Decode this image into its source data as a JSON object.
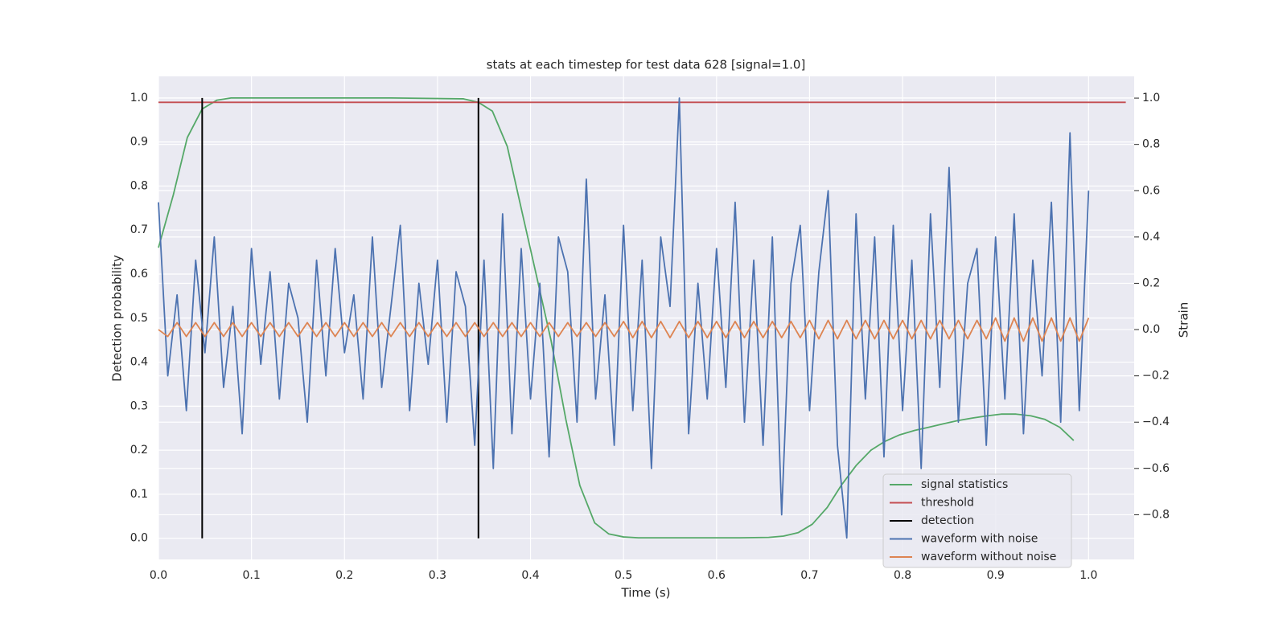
{
  "chart_data": {
    "type": "line",
    "title": "stats at each timestep for test data 628 [signal=1.0]",
    "xlabel": "Time (s)",
    "ylabel": "Detection probability",
    "y2label": "Strain",
    "xlim": [
      0,
      1.049
    ],
    "ylim": [
      -0.048,
      1.049
    ],
    "y2lim": [
      -0.993,
      1.094
    ],
    "xticks": [
      {
        "value": 0,
        "label": "0.0"
      },
      0.1,
      0.2,
      0.3,
      0.4,
      0.5,
      0.6,
      0.7,
      0.8,
      0.9,
      {
        "value": 1,
        "label": "1.0"
      }
    ],
    "yticks": [
      {
        "value": 0,
        "label": "0.0"
      },
      0.1,
      0.2,
      0.3,
      0.4,
      0.5,
      0.6,
      0.7,
      0.8,
      0.9,
      {
        "value": 1,
        "label": "1.0"
      }
    ],
    "y2ticks": [
      {
        "value": -0.8,
        "label": "−0.8"
      },
      {
        "value": -0.6,
        "label": "−0.6"
      },
      {
        "value": -0.4,
        "label": "−0.4"
      },
      {
        "value": -0.2,
        "label": "−0.2"
      },
      {
        "value": 0,
        "label": "0.0"
      },
      0.2,
      0.4,
      0.6,
      0.8,
      {
        "value": 1,
        "label": "1.0"
      }
    ],
    "grid": true,
    "legend": "lower right",
    "x": [
      0,
      0.01,
      0.02,
      0.03,
      0.04,
      0.05,
      0.06,
      0.07,
      0.08,
      0.09,
      0.1,
      0.11,
      0.12,
      0.13,
      0.14,
      0.15,
      0.16,
      0.17,
      0.18,
      0.19,
      0.2,
      0.21,
      0.22,
      0.23,
      0.24,
      0.25,
      0.26,
      0.27,
      0.28,
      0.29,
      0.3,
      0.31,
      0.32,
      0.33,
      0.34,
      0.35,
      0.36,
      0.37,
      0.38,
      0.39,
      0.4,
      0.41,
      0.42,
      0.43,
      0.44,
      0.45,
      0.46,
      0.47,
      0.48,
      0.49,
      0.5,
      0.51,
      0.52,
      0.53,
      0.54,
      0.55,
      0.56,
      0.57,
      0.58,
      0.59,
      0.6,
      0.61,
      0.62,
      0.63,
      0.64,
      0.65,
      0.66,
      0.67,
      0.68,
      0.69,
      0.7,
      0.71,
      0.72,
      0.73,
      0.74,
      0.75,
      0.76,
      0.77,
      0.78,
      0.79,
      0.8,
      0.81,
      0.82,
      0.83,
      0.84,
      0.85,
      0.86,
      0.87,
      0.88,
      0.89,
      0.9,
      0.91,
      0.92,
      0.93,
      0.94,
      0.95,
      0.96,
      0.97,
      0.98,
      0.99,
      1.0
    ],
    "series": [
      {
        "name": "signal statistics",
        "color": "#55a868",
        "x": [
          0,
          0.016,
          0.031,
          0.047,
          0.063,
          0.078,
          0.125,
          0.25,
          0.328,
          0.344,
          0.359,
          0.375,
          0.391,
          0.406,
          0.422,
          0.438,
          0.453,
          0.469,
          0.484,
          0.5,
          0.516,
          0.563,
          0.625,
          0.656,
          0.672,
          0.688,
          0.703,
          0.719,
          0.734,
          0.75,
          0.766,
          0.781,
          0.797,
          0.813,
          0.828,
          0.844,
          0.859,
          0.875,
          0.891,
          0.906,
          0.922,
          0.938,
          0.953,
          0.969,
          0.984
        ],
        "values": [
          0.66,
          0.78,
          0.91,
          0.975,
          0.995,
          1.0,
          1.0,
          1.0,
          0.998,
          0.99,
          0.97,
          0.89,
          0.74,
          0.6,
          0.45,
          0.27,
          0.12,
          0.035,
          0.01,
          0.003,
          0.001,
          0.001,
          0.001,
          0.002,
          0.005,
          0.013,
          0.032,
          0.07,
          0.12,
          0.165,
          0.2,
          0.22,
          0.235,
          0.245,
          0.252,
          0.26,
          0.267,
          0.273,
          0.278,
          0.282,
          0.282,
          0.278,
          0.27,
          0.252,
          0.222
        ]
      },
      {
        "name": "threshold",
        "color": "#c44e52",
        "x": [
          0,
          1.04
        ],
        "values": [
          0.99,
          0.99
        ]
      },
      {
        "name": "detection",
        "color": "#000000",
        "x": [
          0.047,
          0.344
        ],
        "ymin": 0,
        "ymax": 1
      },
      {
        "name": "waveform with noise",
        "color": "#4c72b0",
        "axis": "y2",
        "values": [
          0.55,
          -0.2,
          0.15,
          -0.35,
          0.3,
          -0.1,
          0.4,
          -0.25,
          0.1,
          -0.45,
          0.35,
          -0.15,
          0.25,
          -0.3,
          0.2,
          0.05,
          -0.4,
          0.3,
          -0.2,
          0.35,
          -0.1,
          0.15,
          -0.3,
          0.4,
          -0.25,
          0.1,
          0.45,
          -0.35,
          0.2,
          -0.15,
          0.3,
          -0.4,
          0.25,
          0.1,
          -0.5,
          0.3,
          -0.6,
          0.5,
          -0.45,
          0.35,
          -0.3,
          0.2,
          -0.55,
          0.4,
          0.25,
          -0.4,
          0.65,
          -0.3,
          0.15,
          -0.5,
          0.45,
          -0.35,
          0.3,
          -0.6,
          0.4,
          0.1,
          1.0,
          -0.45,
          0.2,
          -0.3,
          0.35,
          -0.25,
          0.55,
          -0.4,
          0.3,
          -0.5,
          0.4,
          -0.8,
          0.2,
          0.45,
          -0.35,
          0.25,
          0.6,
          -0.5,
          -0.9,
          0.5,
          -0.3,
          0.4,
          -0.55,
          0.45,
          -0.35,
          0.3,
          -0.6,
          0.5,
          -0.25,
          0.7,
          -0.4,
          0.2,
          0.35,
          -0.5,
          0.4,
          -0.3,
          0.5,
          -0.45,
          0.3,
          -0.2,
          0.55,
          -0.4,
          0.85,
          -0.35,
          0.6
        ]
      },
      {
        "name": "waveform without noise",
        "color": "#dd8452",
        "axis": "y2",
        "values": [
          0,
          -0.03,
          0.03,
          -0.03,
          0.03,
          -0.03,
          0.03,
          -0.03,
          0.03,
          -0.03,
          0.03,
          -0.03,
          0.03,
          -0.03,
          0.03,
          -0.03,
          0.03,
          -0.03,
          0.03,
          -0.03,
          0.03,
          -0.03,
          0.03,
          -0.03,
          0.03,
          -0.03,
          0.03,
          -0.03,
          0.03,
          -0.03,
          0.03,
          -0.03,
          0.03,
          -0.03,
          0.03,
          -0.03,
          0.03,
          -0.03,
          0.03,
          -0.03,
          0.03,
          -0.03,
          0.03,
          -0.03,
          0.03,
          -0.03,
          0.03,
          -0.03,
          0.03,
          -0.03,
          0.035,
          -0.035,
          0.035,
          -0.035,
          0.035,
          -0.035,
          0.035,
          -0.035,
          0.035,
          -0.035,
          0.035,
          -0.035,
          0.035,
          -0.035,
          0.035,
          -0.035,
          0.035,
          -0.035,
          0.035,
          -0.035,
          0.04,
          -0.04,
          0.04,
          -0.04,
          0.04,
          -0.04,
          0.04,
          -0.04,
          0.04,
          -0.04,
          0.04,
          -0.04,
          0.04,
          -0.04,
          0.04,
          -0.04,
          0.04,
          -0.04,
          0.04,
          -0.04,
          0.05,
          -0.05,
          0.05,
          -0.05,
          0.05,
          -0.05,
          0.05,
          -0.05,
          0.05,
          -0.05,
          0.05
        ]
      }
    ]
  }
}
